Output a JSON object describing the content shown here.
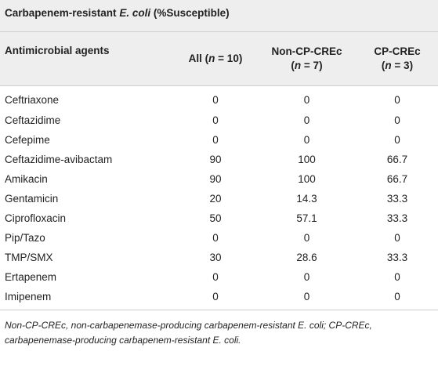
{
  "table": {
    "title_prefix": "Carbapenem-resistant ",
    "title_italic": "E. coli",
    "title_suffix": " (%Susceptible)",
    "headers": {
      "agent": "Antimicrobial agents",
      "all_prefix": "All (",
      "all_n": "n",
      "all_suffix": " = 10)",
      "noncp_line1": "Non-CP-CREc",
      "noncp_prefix": "(",
      "noncp_n": "n",
      "noncp_suffix": " = 7)",
      "cp_line1": "CP-CREc",
      "cp_prefix": "(",
      "cp_n": "n",
      "cp_suffix": " = 3)"
    },
    "rows": [
      {
        "agent": "Ceftriaxone",
        "all": "0",
        "noncp": "0",
        "cp": "0"
      },
      {
        "agent": "Ceftazidime",
        "all": "0",
        "noncp": "0",
        "cp": "0"
      },
      {
        "agent": "Cefepime",
        "all": "0",
        "noncp": "0",
        "cp": "0"
      },
      {
        "agent": "Ceftazidime-avibactam",
        "all": "90",
        "noncp": "100",
        "cp": "66.7"
      },
      {
        "agent": "Amikacin",
        "all": "90",
        "noncp": "100",
        "cp": "66.7"
      },
      {
        "agent": "Gentamicin",
        "all": "20",
        "noncp": "14.3",
        "cp": "33.3"
      },
      {
        "agent": "Ciprofloxacin",
        "all": "50",
        "noncp": "57.1",
        "cp": "33.3"
      },
      {
        "agent": "Pip/Tazo",
        "all": "0",
        "noncp": "0",
        "cp": "0"
      },
      {
        "agent": "TMP/SMX",
        "all": "30",
        "noncp": "28.6",
        "cp": "33.3"
      },
      {
        "agent": "Ertapenem",
        "all": "0",
        "noncp": "0",
        "cp": "0"
      },
      {
        "agent": "Imipenem",
        "all": "0",
        "noncp": "0",
        "cp": "0"
      }
    ],
    "footnote": "Non-CP-CREc, non-carbapenemase-producing carbapenem-resistant E. coli; CP-CREc, carbapenemase-producing carbapenem-resistant E. coli."
  }
}
